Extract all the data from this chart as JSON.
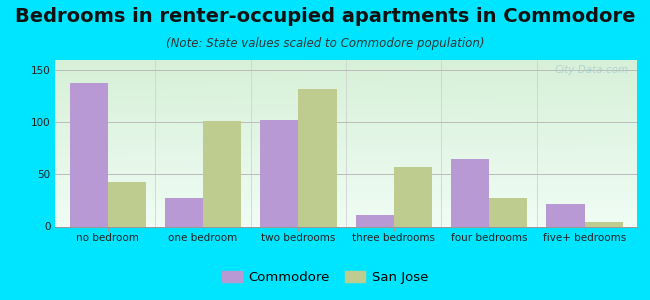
{
  "title": "Bedrooms in renter-occupied apartments in Commodore",
  "subtitle": "(Note: State values scaled to Commodore population)",
  "categories": [
    "no bedroom",
    "one bedroom",
    "two bedrooms",
    "three bedrooms",
    "four bedrooms",
    "five+ bedrooms"
  ],
  "commodore_values": [
    138,
    27,
    102,
    11,
    65,
    22
  ],
  "sanjose_values": [
    43,
    101,
    132,
    57,
    27,
    4
  ],
  "commodore_color": "#b899d4",
  "sanjose_color": "#bfcc90",
  "ylim": [
    0,
    160
  ],
  "yticks": [
    0,
    50,
    100,
    150
  ],
  "bar_width": 0.4,
  "background_outer": "#00e5ff",
  "bg_top_left": "#d8f0d8",
  "bg_top_right": "#e8f8f8",
  "bg_bottom": "#f5fff5",
  "grid_color": "#bbbbbb",
  "title_fontsize": 14,
  "subtitle_fontsize": 8.5,
  "tick_fontsize": 7.5,
  "legend_fontsize": 9.5,
  "watermark": "City-Data.com"
}
